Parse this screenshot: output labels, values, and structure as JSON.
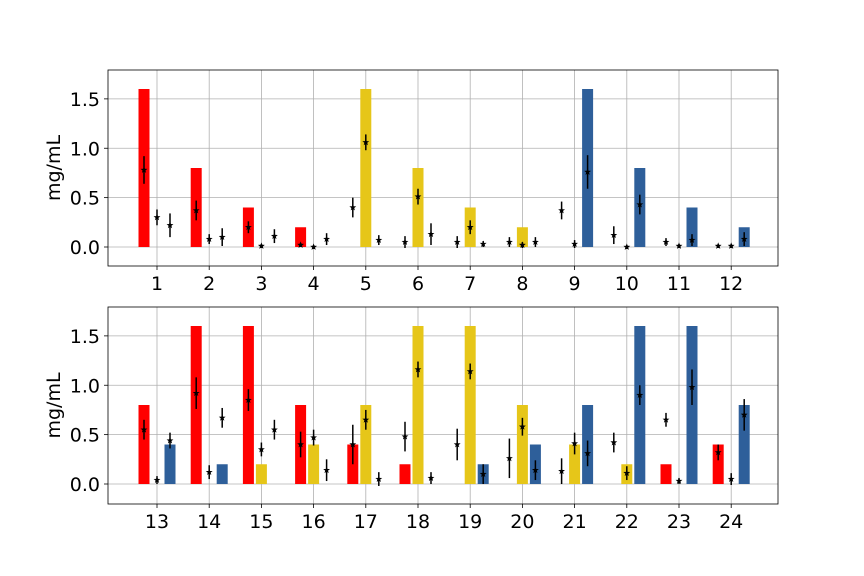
{
  "colors": {
    "red": "#ff0000",
    "yellow": "#e6c619",
    "blue": "#2e5f9a",
    "grid": "#b0b0b0",
    "marker": "#000000"
  },
  "chart_data": [
    {
      "type": "bar",
      "ylabel": "mg/mL",
      "ylim": [
        -0.2,
        1.8
      ],
      "yticks": [
        "0.0",
        "0.5",
        "1.0",
        "1.5"
      ],
      "grid": true,
      "categories": [
        "1",
        "2",
        "3",
        "4",
        "5",
        "6",
        "7",
        "8",
        "9",
        "10",
        "11",
        "12"
      ],
      "bars": [
        {
          "r": 1.6,
          "y": 0,
          "b": 0
        },
        {
          "r": 0.8,
          "y": 0,
          "b": 0
        },
        {
          "r": 0.4,
          "y": 0,
          "b": 0
        },
        {
          "r": 0.2,
          "y": 0,
          "b": 0
        },
        {
          "r": 0,
          "y": 1.6,
          "b": 0
        },
        {
          "r": 0,
          "y": 0.8,
          "b": 0
        },
        {
          "r": 0,
          "y": 0.4,
          "b": 0
        },
        {
          "r": 0,
          "y": 0.2,
          "b": 0
        },
        {
          "r": 0,
          "y": 0,
          "b": 1.6
        },
        {
          "r": 0,
          "y": 0,
          "b": 0.8
        },
        {
          "r": 0,
          "y": 0,
          "b": 0.4
        },
        {
          "r": 0,
          "y": 0,
          "b": 0.2
        }
      ],
      "estimates": [
        [
          [
            0.78,
            0.14
          ],
          [
            0.3,
            0.08
          ],
          [
            0.22,
            0.12
          ]
        ],
        [
          [
            0.37,
            0.1
          ],
          [
            0.08,
            0.05
          ],
          [
            0.1,
            0.09
          ]
        ],
        [
          [
            0.2,
            0.06
          ],
          [
            0.01,
            0.02
          ],
          [
            0.11,
            0.07
          ]
        ],
        [
          [
            0.02,
            0.02
          ],
          [
            0.0,
            0.02
          ],
          [
            0.08,
            0.06
          ]
        ],
        [
          [
            0.4,
            0.1
          ],
          [
            1.06,
            0.08
          ],
          [
            0.07,
            0.05
          ]
        ],
        [
          [
            0.05,
            0.06
          ],
          [
            0.51,
            0.08
          ],
          [
            0.13,
            0.11
          ]
        ],
        [
          [
            0.05,
            0.06
          ],
          [
            0.2,
            0.07
          ],
          [
            0.03,
            0.03
          ]
        ],
        [
          [
            0.05,
            0.05
          ],
          [
            0.02,
            0.03
          ],
          [
            0.05,
            0.05
          ]
        ],
        [
          [
            0.37,
            0.09
          ],
          [
            0.03,
            0.04
          ],
          [
            0.76,
            0.17
          ]
        ],
        [
          [
            0.12,
            0.09
          ],
          [
            0.0,
            0.02
          ],
          [
            0.43,
            0.1
          ]
        ],
        [
          [
            0.05,
            0.04
          ],
          [
            0.01,
            0.02
          ],
          [
            0.07,
            0.06
          ]
        ],
        [
          [
            0.01,
            0.02
          ],
          [
            0.01,
            0.02
          ],
          [
            0.08,
            0.07
          ]
        ]
      ]
    },
    {
      "type": "bar",
      "ylabel": "mg/mL",
      "ylim": [
        -0.2,
        1.8
      ],
      "yticks": [
        "0.0",
        "0.5",
        "1.0",
        "1.5"
      ],
      "grid": true,
      "categories": [
        "13",
        "14",
        "15",
        "16",
        "17",
        "18",
        "19",
        "20",
        "21",
        "22",
        "23",
        "24"
      ],
      "bars": [
        {
          "r": 0.8,
          "y": 0,
          "b": 0.4
        },
        {
          "r": 1.6,
          "y": 0,
          "b": 0.2
        },
        {
          "r": 1.6,
          "y": 0.2,
          "b": 0
        },
        {
          "r": 0.8,
          "y": 0.4,
          "b": 0
        },
        {
          "r": 0.4,
          "y": 0.8,
          "b": 0
        },
        {
          "r": 0.2,
          "y": 1.6,
          "b": 0
        },
        {
          "r": 0,
          "y": 1.6,
          "b": 0.2
        },
        {
          "r": 0,
          "y": 0.8,
          "b": 0.4
        },
        {
          "r": 0,
          "y": 0.4,
          "b": 0.8
        },
        {
          "r": 0,
          "y": 0.2,
          "b": 1.6
        },
        {
          "r": 0.2,
          "y": 0,
          "b": 1.6
        },
        {
          "r": 0.4,
          "y": 0,
          "b": 0.8
        }
      ],
      "estimates": [
        [
          [
            0.55,
            0.1
          ],
          [
            0.04,
            0.04
          ],
          [
            0.44,
            0.08
          ]
        ],
        [
          [
            0.92,
            0.16
          ],
          [
            0.12,
            0.07
          ],
          [
            0.67,
            0.1
          ]
        ],
        [
          [
            0.85,
            0.11
          ],
          [
            0.35,
            0.07
          ],
          [
            0.55,
            0.1
          ]
        ],
        [
          [
            0.4,
            0.13
          ],
          [
            0.47,
            0.08
          ],
          [
            0.14,
            0.11
          ]
        ],
        [
          [
            0.4,
            0.2
          ],
          [
            0.65,
            0.1
          ],
          [
            0.05,
            0.07
          ]
        ],
        [
          [
            0.48,
            0.15
          ],
          [
            1.16,
            0.08
          ],
          [
            0.06,
            0.06
          ]
        ],
        [
          [
            0.4,
            0.16
          ],
          [
            1.14,
            0.08
          ],
          [
            0.1,
            0.1
          ]
        ],
        [
          [
            0.26,
            0.2
          ],
          [
            0.58,
            0.09
          ],
          [
            0.14,
            0.1
          ]
        ],
        [
          [
            0.13,
            0.13
          ],
          [
            0.41,
            0.11
          ],
          [
            0.31,
            0.13
          ]
        ],
        [
          [
            0.42,
            0.1
          ],
          [
            0.11,
            0.07
          ],
          [
            0.9,
            0.1
          ]
        ],
        [
          [
            0.65,
            0.07
          ],
          [
            0.03,
            0.03
          ],
          [
            0.98,
            0.18
          ]
        ],
        [
          [
            0.32,
            0.08
          ],
          [
            0.05,
            0.06
          ],
          [
            0.7,
            0.16
          ]
        ]
      ]
    }
  ]
}
